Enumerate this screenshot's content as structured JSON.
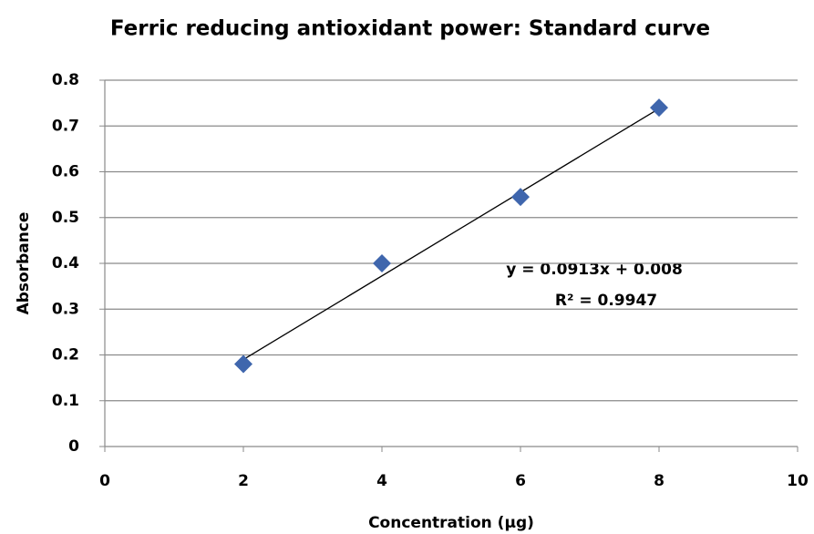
{
  "chart_data": {
    "type": "scatter",
    "title": "Ferric reducing antioxidant power: Standard curve",
    "x_label": "Concentration (µg)",
    "y_label": "Absorbance",
    "series": [
      {
        "name": "Absorbance",
        "color": "#3f66ad",
        "x": [
          2,
          4,
          6,
          8
        ],
        "values": [
          0.18,
          0.4,
          0.545,
          0.74
        ]
      }
    ],
    "trendline": {
      "color": "#000000",
      "x": [
        2,
        8
      ],
      "values": [
        0.19,
        0.738
      ]
    },
    "annotations": [
      "y = 0.0913x + 0.008",
      "R² = 0.9947"
    ],
    "xlim": [
      0,
      10
    ],
    "xticks": [
      0,
      2,
      4,
      6,
      8,
      10
    ],
    "ylim": [
      0,
      0.8
    ],
    "yticks": [
      0,
      0.1,
      0.2,
      0.3,
      0.4,
      0.5,
      0.6,
      0.7,
      0.8
    ],
    "grid": true
  }
}
